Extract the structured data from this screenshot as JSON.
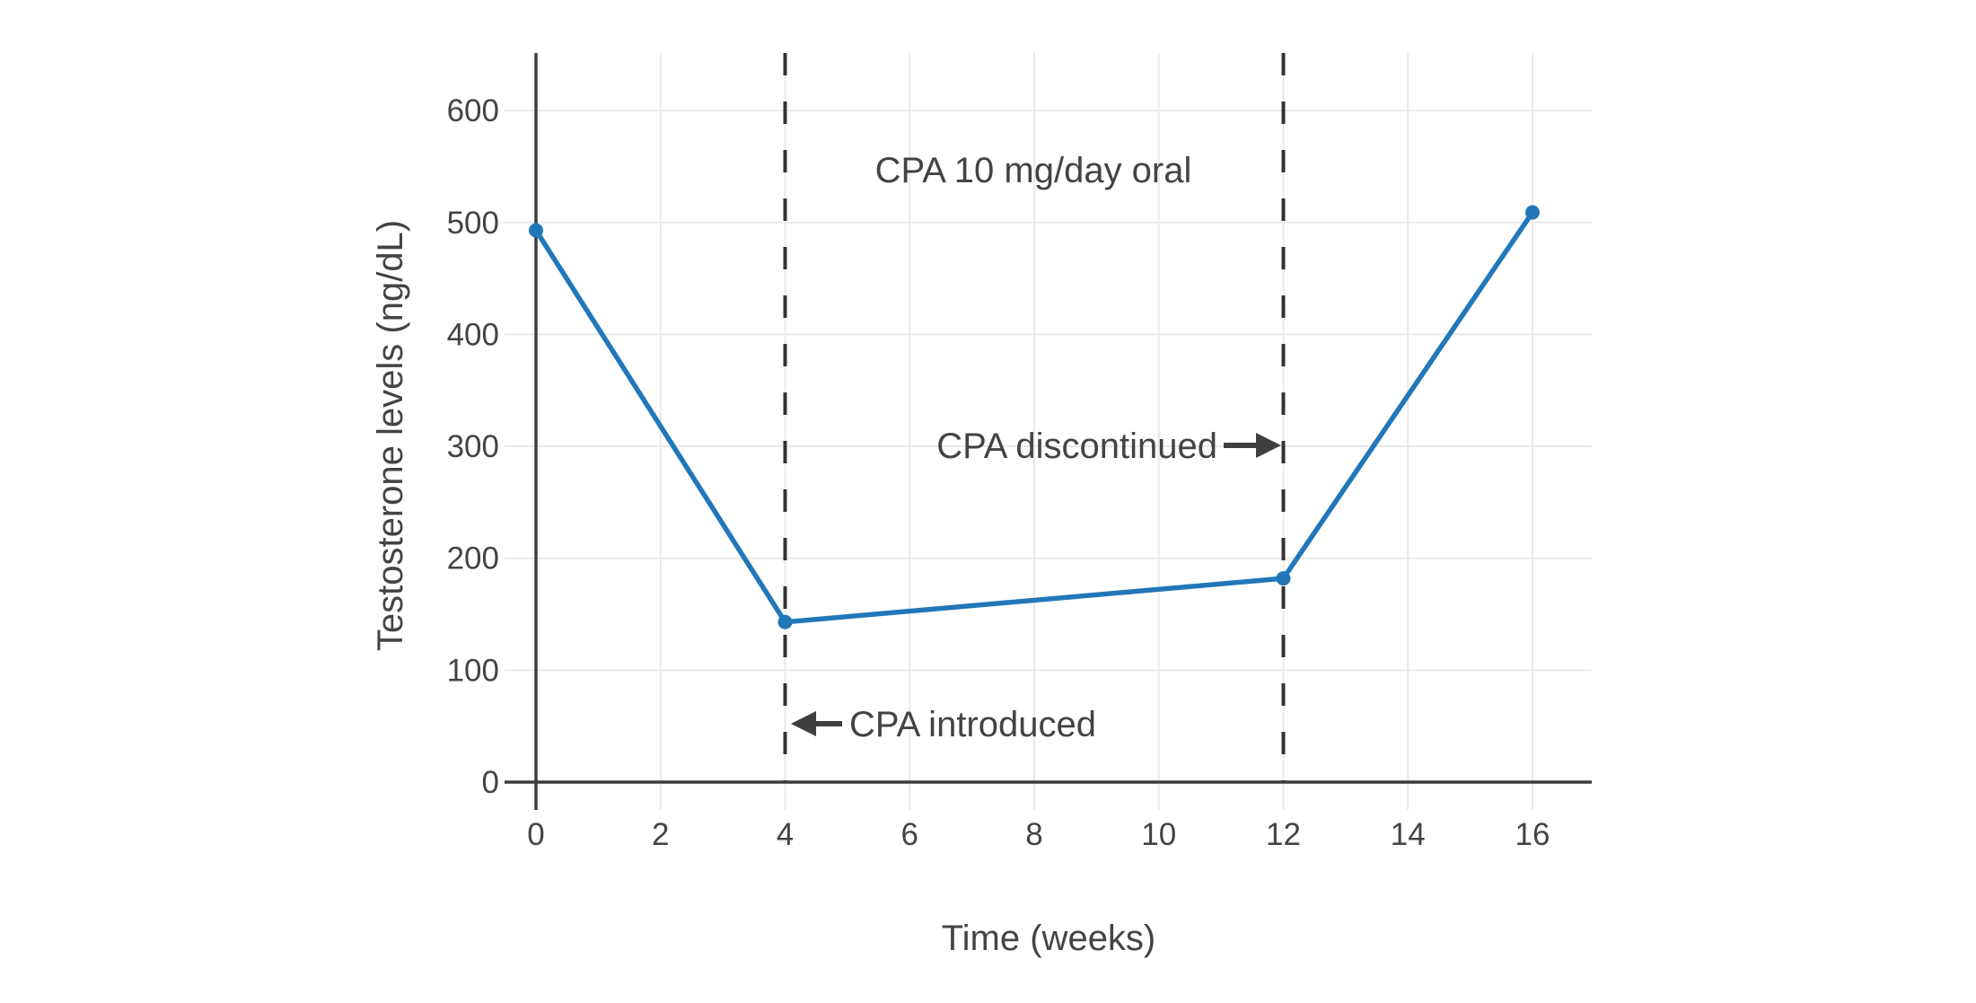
{
  "chart_data": {
    "type": "line",
    "annotation_title": "CPA 10 mg/day oral",
    "xlabel": "Time (weeks)",
    "ylabel": "Testosterone levels (ng/dL)",
    "series": [
      {
        "name": "Testosterone",
        "x": [
          0,
          4,
          12,
          16
        ],
        "y": [
          493,
          143,
          182,
          509
        ]
      }
    ],
    "x_ticks": [
      0,
      2,
      4,
      6,
      8,
      10,
      12,
      14,
      16
    ],
    "y_ticks": [
      0,
      100,
      200,
      300,
      400,
      500,
      600
    ],
    "xlim": [
      -0.5,
      16.95
    ],
    "ylim": [
      -25,
      651
    ],
    "grid": true,
    "legend": "none",
    "event_lines": [
      {
        "x": 4,
        "style": "dashed",
        "label": "CPA introduced",
        "arrow": "left"
      },
      {
        "x": 12,
        "style": "dashed",
        "label": "CPA discontinued",
        "arrow": "right"
      }
    ],
    "colors": {
      "line": "#2277b8",
      "marker": "#2277b8",
      "grid": "#e9e9e9",
      "zeroline": "#3d3d3d",
      "dashed_line": "#333333",
      "text": "#444444",
      "arrow": "#3f3f3f",
      "background": "#ffffff"
    }
  }
}
